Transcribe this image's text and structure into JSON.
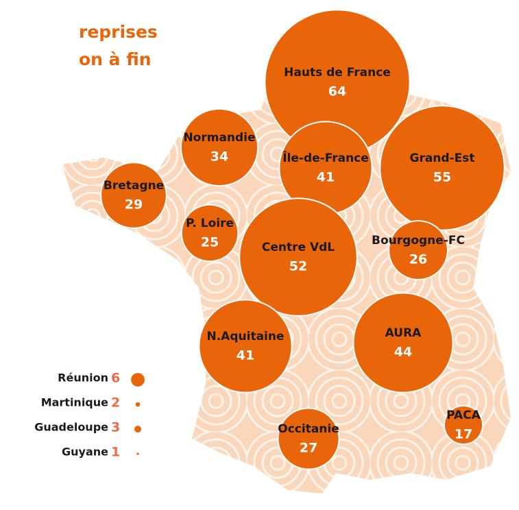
{
  "title": [
    "reprises",
    "on à fin"
  ],
  "regions": [
    {
      "name": "Hauts de France",
      "value": 64
    },
    {
      "name": "Normandie",
      "value": 34
    },
    {
      "name": "Île-de-France",
      "value": 41
    },
    {
      "name": "Grand-Est",
      "value": 55
    },
    {
      "name": "Bretagne",
      "value": 29
    },
    {
      "name": "P. Loire",
      "value": 25
    },
    {
      "name": "Centre VdL",
      "value": 52
    },
    {
      "name": "Bourgogne-FC",
      "value": 26
    },
    {
      "name": "N.Aquitaine",
      "value": 41
    },
    {
      "name": "AURA",
      "value": 44
    },
    {
      "name": "Occitanie",
      "value": 27
    },
    {
      "name": "PACA",
      "value": 17
    }
  ],
  "overseas": [
    {
      "name": "Réunion",
      "value": 6
    },
    {
      "name": "Martinique",
      "value": 2
    },
    {
      "name": "Guadeloupe",
      "value": 3
    },
    {
      "name": "Guyane",
      "value": 1
    }
  ]
}
